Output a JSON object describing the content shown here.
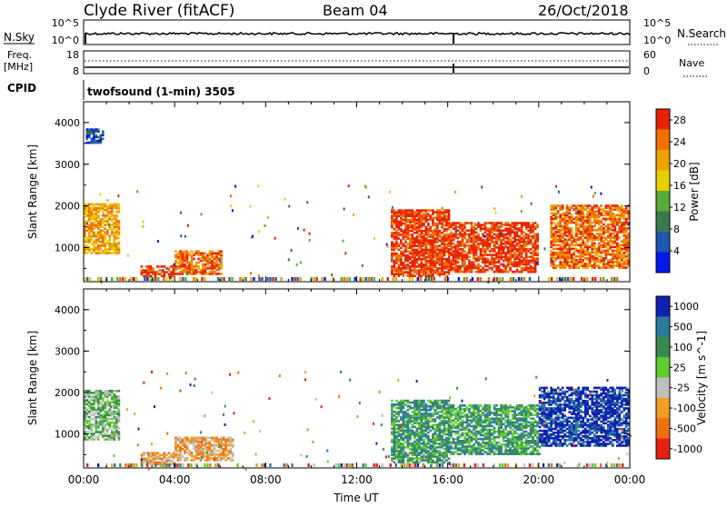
{
  "header": {
    "station": "Clyde River (fitACF)",
    "beam": "Beam 04",
    "date": "26/Oct/2018"
  },
  "noise_panel": {
    "left_label": "N.Sky",
    "left_ticks": [
      "10^5",
      "10^0"
    ],
    "right_label": "N.Search",
    "right_ticks": [
      "10^5",
      "10^0"
    ]
  },
  "freq_panel": {
    "left_label_line1": "Freq.",
    "left_label_line2": "[MHz]",
    "left_ticks": [
      "18",
      "8"
    ],
    "right_label": "Nave",
    "right_ticks": [
      "60",
      "0"
    ]
  },
  "cpid": {
    "label": "CPID",
    "text": "twofsound (1-min) 3505"
  },
  "colors": {
    "power_scale": [
      "#0018e8",
      "#1e58b0",
      "#3a7a4a",
      "#58aa3a",
      "#e8d000",
      "#f0a000",
      "#f07000",
      "#e82000"
    ],
    "velocity_scale": [
      "#1020b0",
      "#2a7aa0",
      "#3a8a50",
      "#60cc30",
      "#c0c0c0",
      "#f0a020",
      "#f07010",
      "#e82010"
    ],
    "frame": "#000000"
  },
  "chart_data": [
    {
      "type": "heatmap",
      "panel": "power",
      "ylabel": "Slant Range [km]",
      "ylim": [
        180,
        4500
      ],
      "yticks": [
        "1000",
        "2000",
        "3000",
        "4000"
      ],
      "xlim": [
        "00:00",
        "24:00"
      ],
      "colorbar_label": "Power [dB]",
      "colorbar_ticks": [
        "4",
        "8",
        "12",
        "16",
        "20",
        "24",
        "28"
      ],
      "colorbar_range": [
        0,
        30
      ],
      "regions": [
        {
          "t0": 0.0,
          "t1": 1.6,
          "r0": 850,
          "r1": 2050,
          "level": 5
        },
        {
          "t0": 0.1,
          "t1": 0.8,
          "r0": 3500,
          "r1": 3850,
          "level": 1
        },
        {
          "t0": 2.5,
          "t1": 4.0,
          "r0": 300,
          "r1": 550,
          "level": 7
        },
        {
          "t0": 4.0,
          "t1": 6.0,
          "r0": 350,
          "r1": 900,
          "level": 6
        },
        {
          "t0": 13.5,
          "t1": 16.0,
          "r0": 300,
          "r1": 1900,
          "level": 7
        },
        {
          "t0": 16.0,
          "t1": 20.0,
          "r0": 400,
          "r1": 1600,
          "level": 7
        },
        {
          "t0": 20.5,
          "t1": 24.0,
          "r0": 500,
          "r1": 2000,
          "level": 6
        }
      ]
    },
    {
      "type": "heatmap",
      "panel": "velocity",
      "ylabel": "Slant Range [km]",
      "ylim": [
        180,
        4500
      ],
      "yticks": [
        "1000",
        "2000",
        "3000",
        "4000"
      ],
      "xlabel": "Time UT",
      "xticks": [
        "00:00",
        "04:00",
        "08:00",
        "12:00",
        "16:00",
        "20:00",
        "00:00"
      ],
      "xlim": [
        "00:00",
        "24:00"
      ],
      "colorbar_label": "Velocity [m s^-1]",
      "colorbar_ticks": [
        "1000",
        "500",
        "100",
        "25",
        "-25",
        "-100",
        "-500",
        "-1000"
      ],
      "colorbar_range": [
        -1000,
        1000
      ],
      "regions": [
        {
          "t0": 0.0,
          "t1": 1.6,
          "r0": 850,
          "r1": 2050,
          "level": 3
        },
        {
          "t0": 2.5,
          "t1": 4.0,
          "r0": 250,
          "r1": 550,
          "level": 5
        },
        {
          "t0": 4.0,
          "t1": 6.5,
          "r0": 350,
          "r1": 900,
          "level": 5
        },
        {
          "t0": 13.5,
          "t1": 16.0,
          "r0": 300,
          "r1": 1800,
          "level": 2
        },
        {
          "t0": 16.0,
          "t1": 20.0,
          "r0": 500,
          "r1": 1700,
          "level": 2
        },
        {
          "t0": 20.0,
          "t1": 24.0,
          "r0": 700,
          "r1": 2100,
          "level": 0
        }
      ]
    }
  ]
}
